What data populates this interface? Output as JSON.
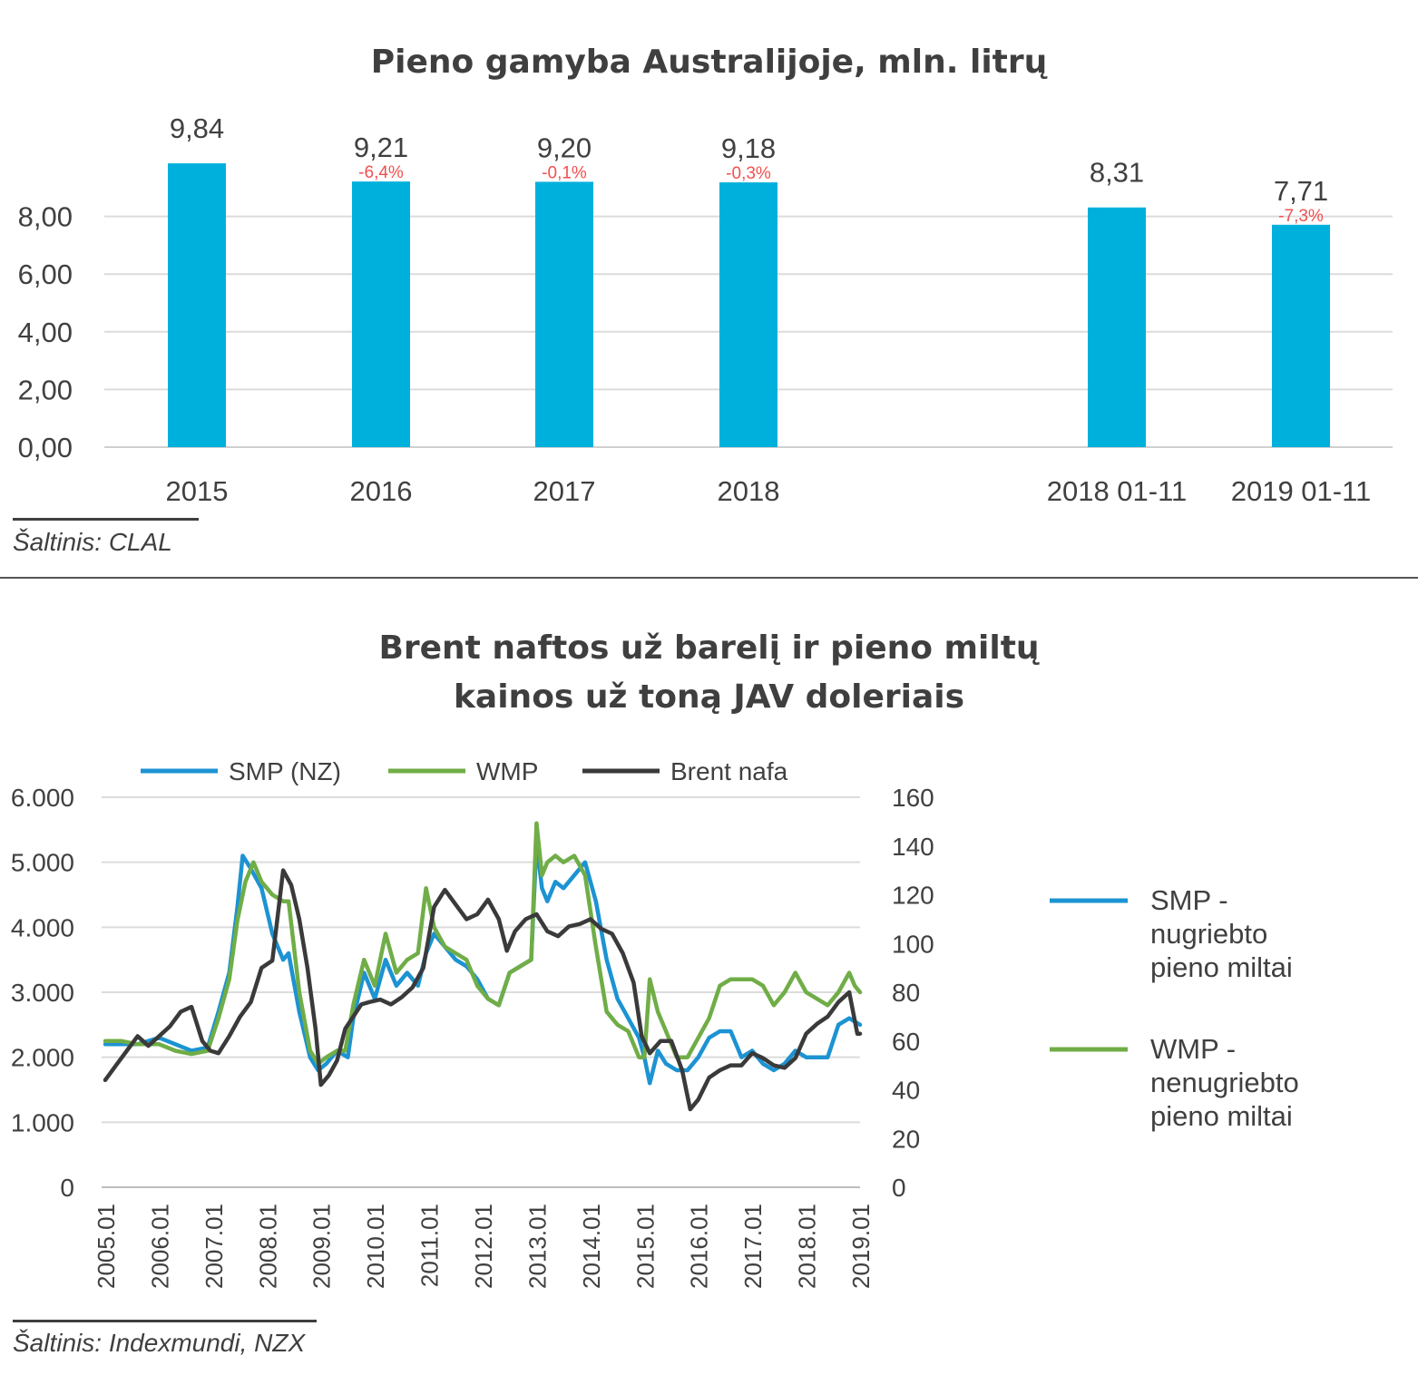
{
  "chart_data": [
    {
      "type": "bar",
      "title": "Pieno gamyba Australijoje, mln. litrų",
      "categories": [
        "2015",
        "2016",
        "2017",
        "2018",
        "2018 01-11",
        "2019 01-11"
      ],
      "values": [
        9.84,
        9.21,
        9.2,
        9.18,
        8.31,
        7.71
      ],
      "value_labels": [
        "9,84",
        "9,21",
        "9,20",
        "9,18",
        "8,31",
        "7,71"
      ],
      "change_labels": [
        "",
        "-6,4%",
        "-0,1%",
        "-0,3%",
        "",
        "-7,3%"
      ],
      "y_ticks": [
        "0,00",
        "2,00",
        "4,00",
        "6,00",
        "8,00"
      ],
      "ylim": [
        0,
        10
      ],
      "bar_color": "#00b0dc",
      "change_color": "#f0504f",
      "grid": true,
      "source": "Šaltinis: CLAL"
    },
    {
      "type": "line",
      "title_lines": [
        "Brent naftos už barelį ir pieno miltų",
        "kainos už toną JAV doleriais"
      ],
      "x_ticks": [
        "2005.01",
        "2006.01",
        "2007.01",
        "2008.01",
        "2009.01",
        "2010.01",
        "2011.01",
        "2012.01",
        "2013.01",
        "2014.01",
        "2015.01",
        "2016.01",
        "2017.01",
        "2018.01",
        "2019.01"
      ],
      "x_range": [
        2005.0,
        2019.0
      ],
      "y_left_ticks": [
        "0",
        "1.000",
        "2.000",
        "3.000",
        "4.000",
        "5.000",
        "6.000"
      ],
      "y_left_range": [
        0,
        6000
      ],
      "y_right_ticks": [
        "0",
        "20",
        "40",
        "60",
        "80",
        "100",
        "120",
        "140",
        "160"
      ],
      "y_right_range": [
        0,
        160
      ],
      "legend_top": [
        "SMP (NZ)",
        "WMP",
        "Brent nafa"
      ],
      "legend_side": [
        {
          "lines": [
            "SMP -",
            "nugriebto",
            "pieno miltai"
          ],
          "color": "#1c93d2"
        },
        {
          "lines": [
            "WMP -",
            "nenugriebto",
            "pieno miltai"
          ],
          "color": "#70ad47"
        }
      ],
      "series": [
        {
          "name": "SMP (NZ)",
          "axis": "left",
          "color": "#1c93d2",
          "x": [
            2005.0,
            2005.3,
            2005.6,
            2006.0,
            2006.3,
            2006.6,
            2006.9,
            2007.1,
            2007.3,
            2007.45,
            2007.55,
            2007.7,
            2007.9,
            2008.1,
            2008.3,
            2008.4,
            2008.6,
            2008.8,
            2008.95,
            2009.1,
            2009.3,
            2009.5,
            2009.6,
            2009.8,
            2010.0,
            2010.2,
            2010.4,
            2010.6,
            2010.8,
            2010.95,
            2011.1,
            2011.3,
            2011.5,
            2011.7,
            2011.9,
            2012.1,
            2012.3,
            2012.5,
            2012.7,
            2012.9,
            2013.0,
            2013.1,
            2013.2,
            2013.35,
            2013.5,
            2013.7,
            2013.9,
            2014.1,
            2014.3,
            2014.5,
            2014.7,
            2014.9,
            2015.0,
            2015.1,
            2015.25,
            2015.4,
            2015.6,
            2015.8,
            2016.0,
            2016.2,
            2016.4,
            2016.6,
            2016.8,
            2017.0,
            2017.2,
            2017.4,
            2017.6,
            2017.8,
            2018.0,
            2018.2,
            2018.4,
            2018.6,
            2018.8,
            2019.0
          ],
          "values": [
            2200,
            2200,
            2200,
            2300,
            2200,
            2100,
            2150,
            2700,
            3300,
            4300,
            5100,
            4900,
            4600,
            3900,
            3500,
            3600,
            2700,
            2000,
            1800,
            1900,
            2100,
            2000,
            2600,
            3300,
            2900,
            3500,
            3100,
            3300,
            3100,
            3600,
            3900,
            3700,
            3500,
            3400,
            3200,
            2900,
            2800,
            3300,
            3400,
            3500,
            5300,
            4600,
            4400,
            4700,
            4600,
            4800,
            5000,
            4400,
            3500,
            2900,
            2600,
            2300,
            2000,
            1600,
            2100,
            1900,
            1800,
            1800,
            2000,
            2300,
            2400,
            2400,
            2000,
            2100,
            1900,
            1800,
            1900,
            2100,
            2000,
            2000,
            2000,
            2500,
            2600,
            2500
          ]
        },
        {
          "name": "WMP",
          "axis": "left",
          "color": "#70ad47",
          "x": [
            2005.0,
            2005.3,
            2005.6,
            2006.0,
            2006.3,
            2006.6,
            2006.9,
            2007.1,
            2007.3,
            2007.45,
            2007.6,
            2007.75,
            2007.9,
            2008.1,
            2008.3,
            2008.4,
            2008.6,
            2008.8,
            2008.95,
            2009.1,
            2009.3,
            2009.45,
            2009.6,
            2009.8,
            2010.0,
            2010.2,
            2010.4,
            2010.6,
            2010.8,
            2010.95,
            2011.1,
            2011.3,
            2011.5,
            2011.7,
            2011.9,
            2012.1,
            2012.3,
            2012.5,
            2012.7,
            2012.9,
            2013.0,
            2013.1,
            2013.2,
            2013.35,
            2013.5,
            2013.7,
            2013.9,
            2014.1,
            2014.3,
            2014.5,
            2014.7,
            2014.9,
            2015.0,
            2015.1,
            2015.25,
            2015.4,
            2015.6,
            2015.8,
            2016.0,
            2016.2,
            2016.4,
            2016.6,
            2016.8,
            2017.0,
            2017.2,
            2017.4,
            2017.6,
            2017.8,
            2018.0,
            2018.2,
            2018.4,
            2018.6,
            2018.8,
            2018.9,
            2019.0
          ],
          "values": [
            2250,
            2250,
            2200,
            2200,
            2100,
            2050,
            2100,
            2600,
            3200,
            4100,
            4700,
            5000,
            4700,
            4500,
            4400,
            4400,
            3000,
            2100,
            1900,
            2000,
            2100,
            2100,
            2800,
            3500,
            3100,
            3900,
            3300,
            3500,
            3600,
            4600,
            4000,
            3700,
            3600,
            3500,
            3100,
            2900,
            2800,
            3300,
            3400,
            3500,
            5600,
            4800,
            5000,
            5100,
            5000,
            5100,
            4800,
            3700,
            2700,
            2500,
            2400,
            2000,
            2000,
            3200,
            2700,
            2400,
            2000,
            2000,
            2300,
            2600,
            3100,
            3200,
            3200,
            3200,
            3100,
            2800,
            3000,
            3300,
            3000,
            2900,
            2800,
            3000,
            3300,
            3100,
            3000
          ]
        },
        {
          "name": "Brent nafa",
          "axis": "right",
          "color": "#3a3a3a",
          "x": [
            2005.0,
            2005.2,
            2005.4,
            2005.6,
            2005.8,
            2006.0,
            2006.2,
            2006.4,
            2006.6,
            2006.8,
            2006.95,
            2007.1,
            2007.3,
            2007.5,
            2007.7,
            2007.9,
            2008.1,
            2008.3,
            2008.45,
            2008.6,
            2008.75,
            2008.9,
            2009.0,
            2009.15,
            2009.3,
            2009.45,
            2009.6,
            2009.75,
            2009.9,
            2010.1,
            2010.3,
            2010.5,
            2010.7,
            2010.9,
            2011.1,
            2011.3,
            2011.5,
            2011.7,
            2011.9,
            2012.1,
            2012.3,
            2012.45,
            2012.6,
            2012.8,
            2013.0,
            2013.2,
            2013.4,
            2013.6,
            2013.8,
            2014.0,
            2014.2,
            2014.4,
            2014.6,
            2014.8,
            2014.95,
            2015.1,
            2015.3,
            2015.5,
            2015.7,
            2015.85,
            2016.0,
            2016.2,
            2016.4,
            2016.6,
            2016.8,
            2017.0,
            2017.2,
            2017.4,
            2017.6,
            2017.8,
            2018.0,
            2018.2,
            2018.4,
            2018.6,
            2018.8,
            2018.95,
            2019.0
          ],
          "values": [
            44,
            50,
            56,
            62,
            58,
            62,
            66,
            72,
            74,
            60,
            56,
            55,
            62,
            70,
            76,
            90,
            93,
            130,
            124,
            110,
            90,
            65,
            42,
            46,
            52,
            65,
            70,
            75,
            76,
            77,
            75,
            78,
            82,
            90,
            115,
            122,
            116,
            110,
            112,
            118,
            110,
            97,
            105,
            110,
            112,
            105,
            103,
            107,
            108,
            110,
            106,
            104,
            96,
            84,
            62,
            55,
            60,
            60,
            48,
            32,
            36,
            45,
            48,
            50,
            50,
            55,
            53,
            50,
            49,
            53,
            63,
            67,
            70,
            76,
            80,
            63,
            63
          ]
        }
      ],
      "source": "Šaltinis: Indexmundi, NZX"
    }
  ]
}
